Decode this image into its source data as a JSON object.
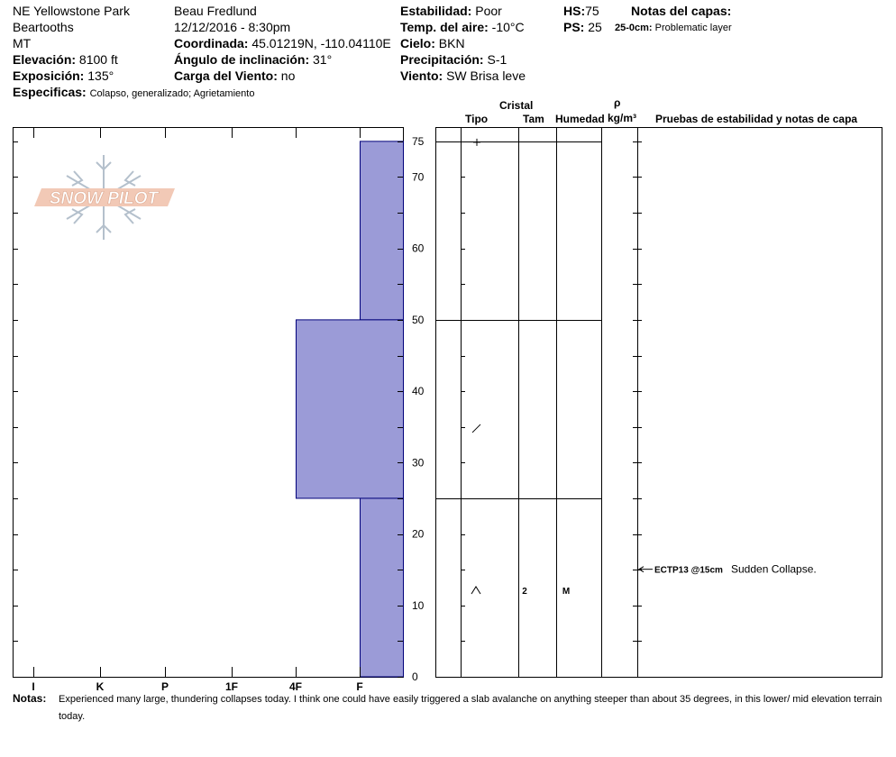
{
  "header": {
    "location": [
      "NE Yellowstone Park",
      "Beartooths",
      "MT"
    ],
    "elevation": {
      "label": "Elevación:",
      "value": "8100 ft"
    },
    "aspect": {
      "label": "Exposición:",
      "value": "135°"
    },
    "observer": "Beau  Fredlund",
    "datetime": "12/12/2016 - 8:30pm",
    "coordinate": {
      "label": "Coordinada:",
      "value": "45.01219N, -110.04110E"
    },
    "slope": {
      "label": "Ángulo de inclinación:",
      "value": "31°"
    },
    "wind_loading": {
      "label": "Carga del Viento:",
      "value": "no"
    },
    "stability": {
      "label": "Estabilidad:",
      "value": "Poor"
    },
    "air_temp": {
      "label": "Temp. del aire:",
      "value": "-10°C"
    },
    "sky": {
      "label": "Cielo:",
      "value": "BKN"
    },
    "precip": {
      "label": "Precipitación:",
      "value": "S-1"
    },
    "wind": {
      "label": "Viento:",
      "value": "SW Brisa leve"
    },
    "hs": {
      "label": "HS:",
      "value": "75"
    },
    "ps": {
      "label": "PS:",
      "value": "25"
    },
    "layer_notes_title": "Notas del capas:",
    "layer_note": {
      "label": "25-0cm:",
      "value": "Problematic layer"
    },
    "specifics": {
      "label": "Especificas:",
      "value": "Colapso, generalizado; Agrietamiento"
    }
  },
  "logo_text": "SNOW PILOT",
  "columns": {
    "cristal": "Cristal",
    "tipo": "Tipo",
    "tam": "Tam",
    "humedad": "Humedad",
    "rho": "ρ",
    "density_unit": "kg/m³",
    "tests": "Pruebas de estabilidad y notas de capa"
  },
  "chart_data": {
    "type": "hardness_profile",
    "x_ticks": [
      "I",
      "K",
      "P",
      "1F",
      "4F",
      "F"
    ],
    "y_ticks": [
      0,
      10,
      20,
      30,
      40,
      50,
      60,
      70,
      75
    ],
    "ylim": [
      0,
      77
    ],
    "layers": [
      {
        "top": 75,
        "bottom": 50,
        "hardness": "F",
        "grain_symbol": "+",
        "size": "",
        "wetness": ""
      },
      {
        "top": 50,
        "bottom": 25,
        "hardness": "4F",
        "grain_symbol": "/",
        "size": "",
        "wetness": ""
      },
      {
        "top": 25,
        "bottom": 0,
        "hardness": "F",
        "grain_symbol": "^",
        "size": "2",
        "wetness": "M"
      }
    ],
    "tests": [
      {
        "depth": 15,
        "code": "ECTP13 @15cm",
        "note": "Sudden Collapse."
      }
    ]
  },
  "notes": {
    "label": "Notas:",
    "text": "Experienced many large, thundering collapses today.  I think one could have easily triggered a slab avalanche on anything steeper than about 35 degrees, in this lower/ mid elevation terrain today."
  },
  "colors": {
    "layer_fill": "#9b9bd7",
    "layer_stroke": "#00007a"
  }
}
